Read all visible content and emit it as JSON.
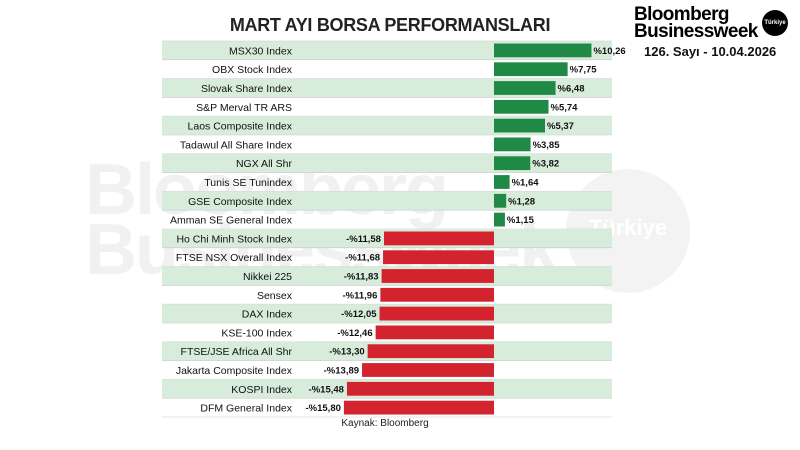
{
  "header": {
    "brand_line1": "Bloomberg",
    "brand_line2": "Businessweek",
    "brand_badge": "Türkiye",
    "issue": "126. Sayı - 10.04.2026"
  },
  "watermark": {
    "line1": "Bloomberg",
    "line2": "Businessweek",
    "badge": "Türkiye"
  },
  "colors": {
    "positive": "#1e8a46",
    "negative": "#d3232f",
    "row_shade": "#d8ecdb"
  },
  "chart_data": {
    "type": "bar",
    "orientation": "horizontal",
    "title": "MART AYI BORSA PERFORMANSLARI",
    "source": "Kaynak: Bloomberg",
    "xlim": [
      -16,
      11
    ],
    "categories": [
      "MSX30 Index",
      "OBX Stock Index",
      "Slovak Share Index",
      "S&P Merval TR ARS",
      "Laos Composite Index",
      "Tadawul All Share Index",
      "NGX All Shr",
      "Tunis SE Tunindex",
      "GSE Composite Index",
      "Amman SE General Index",
      "Ho Chi Minh Stock Index",
      "FTSE NSX Overall Index",
      "Nikkei 225",
      "Sensex",
      "DAX Index",
      "KSE-100 Index",
      "FTSE/JSE Africa All Shr",
      "Jakarta Composite Index",
      "KOSPI Index",
      "DFM General Index"
    ],
    "values": [
      10.26,
      7.75,
      6.48,
      5.74,
      5.37,
      3.85,
      3.82,
      1.64,
      1.28,
      1.15,
      -11.58,
      -11.68,
      -11.83,
      -11.96,
      -12.05,
      -12.46,
      -13.3,
      -13.89,
      -15.48,
      -15.8
    ],
    "data_labels": [
      "%10,26",
      "%7,75",
      "%6,48",
      "%5,74",
      "%5,37",
      "%3,85",
      "%3,82",
      "%1,64",
      "%1,28",
      "%1,15",
      "-%11,58",
      "-%11,68",
      "-%11,83",
      "-%11,96",
      "-%12,05",
      "-%12,46",
      "-%13,30",
      "-%13,89",
      "-%15,48",
      "-%15,80"
    ]
  }
}
